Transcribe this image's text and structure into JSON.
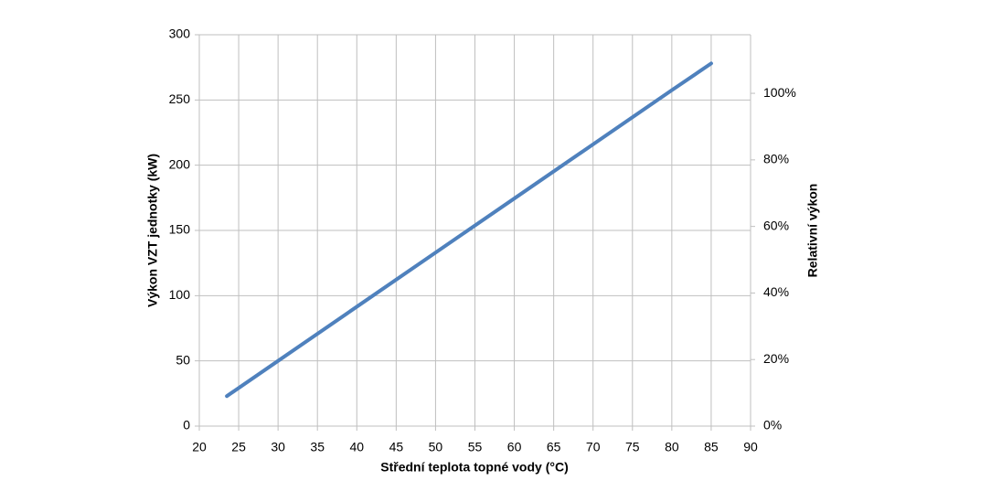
{
  "chart_data": {
    "type": "line",
    "x_label": "Střední teplota topné vody (°C)",
    "y_label": "Výkon VZT jednotky (kW)",
    "y2_label": "Relativní výkon",
    "x": [
      23.5,
      30,
      40,
      50,
      60,
      70,
      80,
      85
    ],
    "series": [
      {
        "color": "#4f81bd",
        "values": [
          23,
          50,
          91.5,
          133,
          174.5,
          216,
          257.5,
          278
        ]
      }
    ],
    "xlim": [
      20,
      90
    ],
    "xticks": [
      20,
      25,
      30,
      35,
      40,
      45,
      50,
      55,
      60,
      65,
      70,
      75,
      80,
      85,
      90
    ],
    "ylim": [
      0,
      300
    ],
    "yticks": [
      0,
      50,
      100,
      150,
      200,
      250,
      300
    ],
    "y2lim": [
      0,
      117.6
    ],
    "y2ticks": [
      {
        "value": 0,
        "label": "0%"
      },
      {
        "value": 20,
        "label": "20%"
      },
      {
        "value": 40,
        "label": "40%"
      },
      {
        "value": 60,
        "label": "60%"
      },
      {
        "value": 80,
        "label": "80%"
      },
      {
        "value": 100,
        "label": "100%"
      }
    ],
    "grid": true
  }
}
